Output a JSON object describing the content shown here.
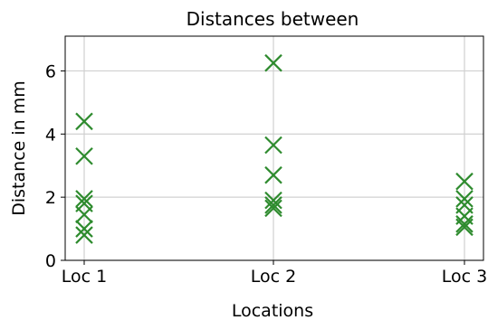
{
  "chart_data": {
    "type": "scatter",
    "title": "Distances between",
    "xlabel": "Locations",
    "ylabel": "Distance in mm",
    "categories": [
      "Loc 1",
      "Loc 2",
      "Loc 3"
    ],
    "ylim": [
      0,
      7.1
    ],
    "yticks": [
      0,
      2,
      4,
      6
    ],
    "grid": true,
    "marker": "x",
    "color": "#2e8b2e",
    "series": [
      {
        "points": [
          {
            "x": "Loc 1",
            "y": 4.4
          },
          {
            "x": "Loc 1",
            "y": 3.3
          },
          {
            "x": "Loc 1",
            "y": 1.95
          },
          {
            "x": "Loc 1",
            "y": 1.8
          },
          {
            "x": "Loc 1",
            "y": 1.45
          },
          {
            "x": "Loc 1",
            "y": 1.0
          },
          {
            "x": "Loc 1",
            "y": 0.8
          },
          {
            "x": "Loc 2",
            "y": 6.25
          },
          {
            "x": "Loc 2",
            "y": 3.65
          },
          {
            "x": "Loc 2",
            "y": 2.7
          },
          {
            "x": "Loc 2",
            "y": 1.9
          },
          {
            "x": "Loc 2",
            "y": 1.75
          },
          {
            "x": "Loc 2",
            "y": 1.65
          },
          {
            "x": "Loc 3",
            "y": 2.5
          },
          {
            "x": "Loc 3",
            "y": 1.95
          },
          {
            "x": "Loc 3",
            "y": 1.75
          },
          {
            "x": "Loc 3",
            "y": 1.4
          },
          {
            "x": "Loc 3",
            "y": 1.15
          },
          {
            "x": "Loc 3",
            "y": 1.05
          }
        ]
      }
    ]
  }
}
